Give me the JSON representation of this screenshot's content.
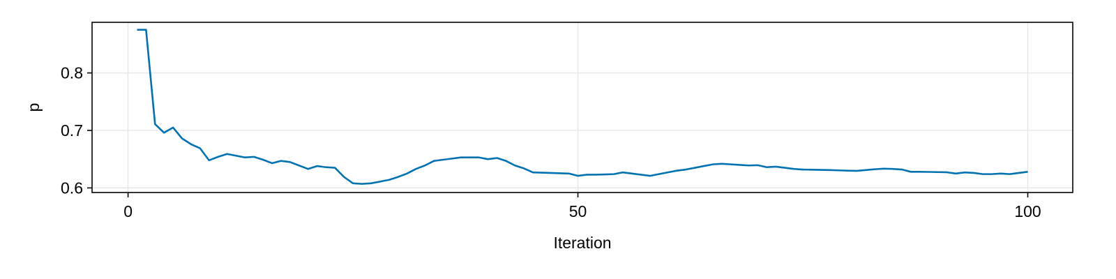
{
  "chart_data": {
    "type": "line",
    "title": "",
    "xlabel": "Iteration",
    "ylabel": "p",
    "xlim": [
      -4,
      105
    ],
    "ylim": [
      0.592,
      0.888
    ],
    "xticks": [
      0,
      50,
      100
    ],
    "xtick_labels": [
      "0",
      "50",
      "100"
    ],
    "yticks": [
      0.6,
      0.7,
      0.8
    ],
    "ytick_labels": [
      "0.6",
      "0.7",
      "0.8"
    ],
    "grid": true,
    "legend": "none",
    "line_color": "#0072b2",
    "series": [
      {
        "x": [
          1,
          2,
          3,
          4,
          5,
          6,
          7,
          8,
          9,
          10,
          11,
          12,
          13,
          14,
          15,
          16,
          17,
          18,
          19,
          20,
          21,
          22,
          23,
          24,
          25,
          26,
          27,
          28,
          29,
          30,
          31,
          32,
          33,
          34,
          35,
          36,
          37,
          38,
          39,
          40,
          41,
          42,
          43,
          44,
          45,
          46,
          47,
          48,
          49,
          50,
          51,
          52,
          53,
          54,
          55,
          56,
          57,
          58,
          59,
          60,
          61,
          62,
          63,
          64,
          65,
          66,
          67,
          68,
          69,
          70,
          71,
          72,
          73,
          74,
          75,
          76,
          77,
          78,
          79,
          80,
          81,
          82,
          83,
          84,
          85,
          86,
          87,
          88,
          89,
          90,
          91,
          92,
          93,
          94,
          95,
          96,
          97,
          98,
          99,
          100
        ],
        "y": [
          0.875,
          0.875,
          0.711,
          0.696,
          0.705,
          0.686,
          0.676,
          0.669,
          0.648,
          0.654,
          0.659,
          0.656,
          0.653,
          0.654,
          0.649,
          0.643,
          0.647,
          0.645,
          0.639,
          0.633,
          0.638,
          0.636,
          0.635,
          0.619,
          0.608,
          0.607,
          0.608,
          0.611,
          0.614,
          0.619,
          0.625,
          0.633,
          0.639,
          0.647,
          0.649,
          0.651,
          0.653,
          0.653,
          0.653,
          0.65,
          0.652,
          0.647,
          0.639,
          0.634,
          0.627,
          0.6265,
          0.626,
          0.6255,
          0.625,
          0.621,
          0.623,
          0.623,
          0.6235,
          0.624,
          0.627,
          0.625,
          0.623,
          0.621,
          0.624,
          0.627,
          0.63,
          0.632,
          0.635,
          0.638,
          0.641,
          0.642,
          0.641,
          0.64,
          0.639,
          0.6395,
          0.636,
          0.637,
          0.635,
          0.633,
          0.632,
          0.6317,
          0.6313,
          0.631,
          0.6305,
          0.63,
          0.6297,
          0.631,
          0.6325,
          0.6335,
          0.633,
          0.632,
          0.628,
          0.628,
          0.6278,
          0.6275,
          0.6272,
          0.625,
          0.627,
          0.626,
          0.624,
          0.624,
          0.625,
          0.624,
          0.626,
          0.628
        ]
      }
    ]
  }
}
